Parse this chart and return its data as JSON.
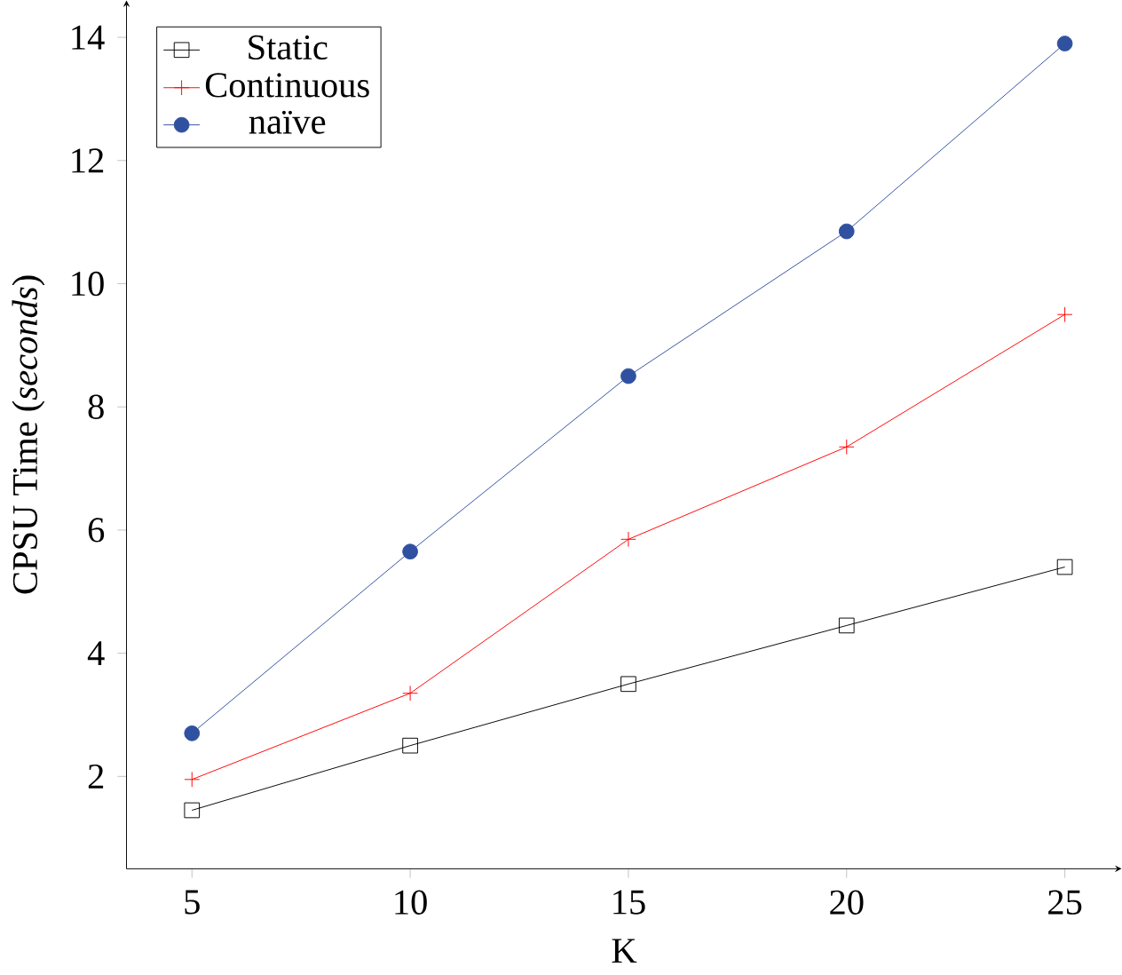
{
  "chart_data": {
    "type": "line",
    "xlabel": "K",
    "ylabel": "CPSU Time (*seconds*)",
    "x": [
      5,
      10,
      15,
      20,
      25
    ],
    "series": [
      {
        "name": "Static",
        "color": "#000000",
        "marker": "square",
        "values": [
          1.45,
          2.5,
          3.5,
          4.45,
          5.4
        ]
      },
      {
        "name": "Continuous",
        "color": "#ff0000",
        "marker": "cross",
        "values": [
          1.95,
          3.35,
          5.85,
          7.35,
          9.5
        ]
      },
      {
        "name": "naïve",
        "color": "#3050a0",
        "marker": "circle",
        "values": [
          2.7,
          5.65,
          8.5,
          10.85,
          13.9
        ]
      }
    ],
    "xlim": [
      3.5,
      26.3
    ],
    "ylim": [
      0.5,
      14.6
    ],
    "xticks": [
      5,
      10,
      15,
      20,
      25
    ],
    "yticks": [
      2,
      4,
      6,
      8,
      10,
      12,
      14
    ],
    "legend": "top left",
    "grid": false,
    "line_style": "solid"
  }
}
